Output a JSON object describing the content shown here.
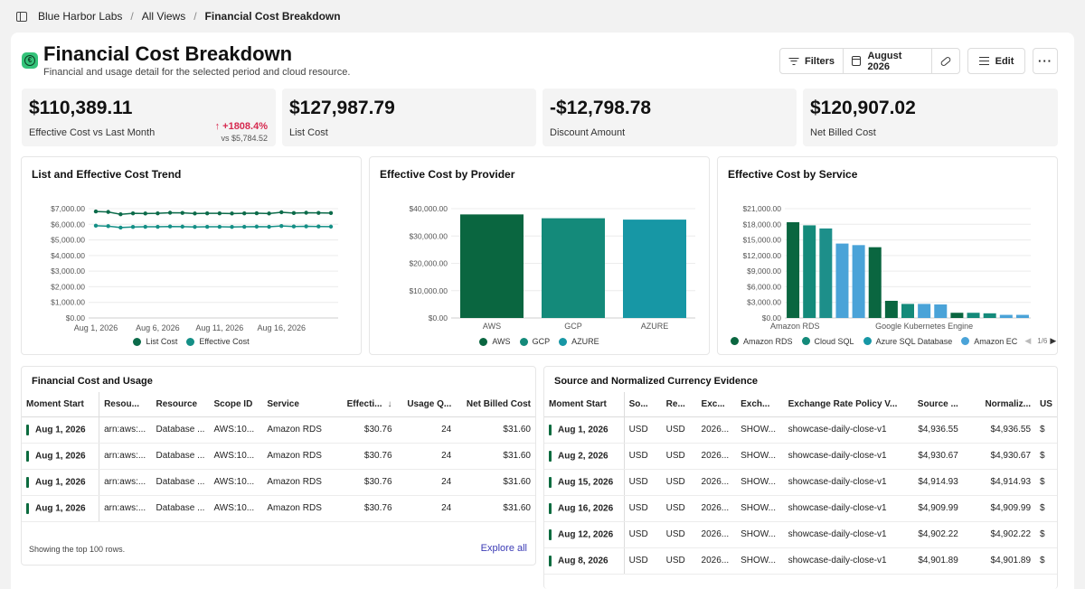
{
  "breadcrumb": [
    "Blue Harbor Labs",
    "All Views",
    "Financial Cost Breakdown"
  ],
  "header": {
    "title": "Financial Cost Breakdown",
    "subtitle": "Financial and usage detail for the selected period and cloud resource.",
    "icon": "euro-icon",
    "accent": "#34c37a"
  },
  "toolbar": {
    "filters_label": "Filters",
    "period_label": "August 2026",
    "edit_label": "Edit",
    "more_label": "···"
  },
  "kpis": [
    {
      "value": "$110,389.11",
      "label": "Effective Cost vs Last Month",
      "delta": "↑ +1808.4%",
      "vs": "vs $5,784.52"
    },
    {
      "value": "$127,987.79",
      "label": "List Cost"
    },
    {
      "value": "-$12,798.78",
      "label": "Discount Amount"
    },
    {
      "value": "$120,907.02",
      "label": "Net Billed Cost"
    }
  ],
  "chart_data": [
    {
      "type": "line",
      "title": "List and Effective Cost Trend",
      "ylim": [
        0,
        7000
      ],
      "yticks": [
        "$0.00",
        "$1,000.00",
        "$2,000.00",
        "$3,000.00",
        "$4,000.00",
        "$5,000.00",
        "$6,000.00",
        "$7,000.00"
      ],
      "xticks": [
        "Aug 1, 2026",
        "Aug 6, 2026",
        "Aug 11, 2026",
        "Aug 16, 2026"
      ],
      "x": [
        "Aug 1",
        "Aug 2",
        "Aug 3",
        "Aug 4",
        "Aug 5",
        "Aug 6",
        "Aug 7",
        "Aug 8",
        "Aug 9",
        "Aug 10",
        "Aug 11",
        "Aug 12",
        "Aug 13",
        "Aug 14",
        "Aug 15",
        "Aug 16",
        "Aug 17",
        "Aug 18",
        "Aug 19",
        "Aug 20"
      ],
      "series": [
        {
          "name": "List Cost",
          "color": "#0c6b4a",
          "values": [
            6820,
            6790,
            6640,
            6700,
            6690,
            6700,
            6740,
            6730,
            6690,
            6700,
            6700,
            6690,
            6700,
            6710,
            6690,
            6770,
            6720,
            6740,
            6730,
            6720
          ]
        },
        {
          "name": "Effective Cost",
          "color": "#148f86",
          "values": [
            5910,
            5880,
            5790,
            5830,
            5840,
            5840,
            5860,
            5850,
            5830,
            5840,
            5840,
            5830,
            5840,
            5850,
            5840,
            5890,
            5860,
            5870,
            5860,
            5850
          ]
        }
      ],
      "legend": "bottom",
      "grid": true
    },
    {
      "type": "bar",
      "title": "Effective Cost by Provider",
      "ylim": [
        0,
        40000
      ],
      "yticks": [
        "$0.00",
        "$10,000.00",
        "$20,000.00",
        "$30,000.00",
        "$40,000.00"
      ],
      "categories": [
        "AWS",
        "GCP",
        "AZURE"
      ],
      "values": [
        37900,
        36500,
        36000
      ],
      "colors": [
        "#0a6640",
        "#148a7a",
        "#1797a5"
      ],
      "legend": "bottom",
      "grid": true
    },
    {
      "type": "bar",
      "title": "Effective Cost by Service",
      "ylim": [
        0,
        21000
      ],
      "yticks": [
        "$0.00",
        "$3,000.00",
        "$6,000.00",
        "$9,000.00",
        "$12,000.00",
        "$15,000.00",
        "$18,000.00",
        "$21,000.00"
      ],
      "xticks": [
        "Amazon RDS",
        "Google Kubernetes Engine"
      ],
      "values": [
        18400,
        17800,
        17200,
        14300,
        14000,
        13600,
        3300,
        2700,
        2700,
        2600,
        1000,
        1000,
        900,
        600,
        600
      ],
      "colors": [
        "#0a6640",
        "#148a7a",
        "#1d8f8a",
        "#4aa3d8",
        "#4aa3d8",
        "#0a6640",
        "#0a6640",
        "#148a7a",
        "#4aa3d8",
        "#4aa3d8",
        "#0a6640",
        "#148a7a",
        "#148a7a",
        "#4aa3d8",
        "#4aa3d8"
      ],
      "legend_items": [
        {
          "name": "Amazon RDS",
          "color": "#0a6640"
        },
        {
          "name": "Cloud SQL",
          "color": "#148a7a"
        },
        {
          "name": "Azure SQL Database",
          "color": "#1797a5"
        },
        {
          "name": "Amazon EC",
          "color": "#4aa3d8"
        }
      ],
      "legend_page": "1/6",
      "legend": "bottom",
      "grid": true
    }
  ],
  "usage_table": {
    "title": "Financial Cost and Usage",
    "columns": [
      "Moment Start",
      "Resou...",
      "Resource",
      "Scope ID",
      "Service",
      "Effecti...",
      "Usage Q...",
      "Net Billed Cost"
    ],
    "sort_icon": "↓",
    "rows": [
      [
        "Aug 1, 2026",
        "arn:aws:...",
        "Database ...",
        "AWS:10...",
        "Amazon RDS",
        "$30.76",
        "24",
        "$31.60"
      ],
      [
        "Aug 1, 2026",
        "arn:aws:...",
        "Database ...",
        "AWS:10...",
        "Amazon RDS",
        "$30.76",
        "24",
        "$31.60"
      ],
      [
        "Aug 1, 2026",
        "arn:aws:...",
        "Database ...",
        "AWS:10...",
        "Amazon RDS",
        "$30.76",
        "24",
        "$31.60"
      ],
      [
        "Aug 1, 2026",
        "arn:aws:...",
        "Database ...",
        "AWS:10...",
        "Amazon RDS",
        "$30.76",
        "24",
        "$31.60"
      ]
    ],
    "footer_note": "Showing the top 100 rows.",
    "explore_label": "Explore all"
  },
  "currency_table": {
    "title": "Source and Normalized Currency Evidence",
    "columns": [
      "Moment Start",
      "So...",
      "Re...",
      "Exc...",
      "Exch...",
      "Exchange Rate Policy V...",
      "Source ...",
      "Normaliz...",
      "US"
    ],
    "rows": [
      [
        "Aug 1, 2026",
        "USD",
        "USD",
        "2026...",
        "SHOW...",
        "showcase-daily-close-v1",
        "$4,936.55",
        "$4,936.55",
        "$"
      ],
      [
        "Aug 2, 2026",
        "USD",
        "USD",
        "2026...",
        "SHOW...",
        "showcase-daily-close-v1",
        "$4,930.67",
        "$4,930.67",
        "$"
      ],
      [
        "Aug 15, 2026",
        "USD",
        "USD",
        "2026...",
        "SHOW...",
        "showcase-daily-close-v1",
        "$4,914.93",
        "$4,914.93",
        "$"
      ],
      [
        "Aug 16, 2026",
        "USD",
        "USD",
        "2026...",
        "SHOW...",
        "showcase-daily-close-v1",
        "$4,909.99",
        "$4,909.99",
        "$"
      ],
      [
        "Aug 12, 2026",
        "USD",
        "USD",
        "2026...",
        "SHOW...",
        "showcase-daily-close-v1",
        "$4,902.22",
        "$4,902.22",
        "$"
      ],
      [
        "Aug 8, 2026",
        "USD",
        "USD",
        "2026...",
        "SHOW...",
        "showcase-daily-close-v1",
        "$4,901.89",
        "$4,901.89",
        "$"
      ]
    ]
  }
}
